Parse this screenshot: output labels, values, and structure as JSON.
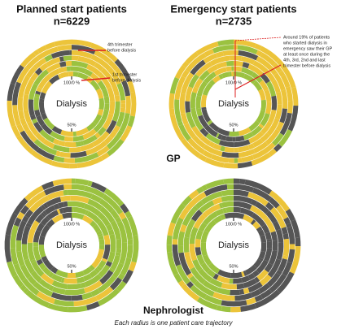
{
  "headers": [
    {
      "title": "Planned start patients",
      "n": "n=6229"
    },
    {
      "title": "Emergency start patients",
      "n": "n=2735"
    }
  ],
  "panels": [
    {
      "center_label": "Dialysis",
      "top_label": "100/0 %",
      "bottom_label": "50%"
    },
    {
      "center_label": "Dialysis",
      "top_label": "100/0 %",
      "bottom_label": "50%"
    },
    {
      "center_label": "Dialysis",
      "top_label": "100/0 %",
      "bottom_label": "50%"
    },
    {
      "center_label": "Dialysis",
      "top_label": "100/0 %",
      "bottom_label": "50%"
    }
  ],
  "annotations": [
    {
      "lines": [
        "4th trimester",
        "before dialysis"
      ]
    },
    {
      "lines": [
        "1st trimester",
        "before dialysis"
      ]
    },
    {
      "lines": [
        "Around 19% of patients",
        "who started dialysis in",
        "emergency saw their GP",
        "at least once during the",
        "4th, 3rd, 2nd and last",
        "trimester before dialysis"
      ]
    }
  ],
  "row_labels": [
    "GP",
    "Nephrologist"
  ],
  "caption": "Each radius is one patient care trajectory"
}
